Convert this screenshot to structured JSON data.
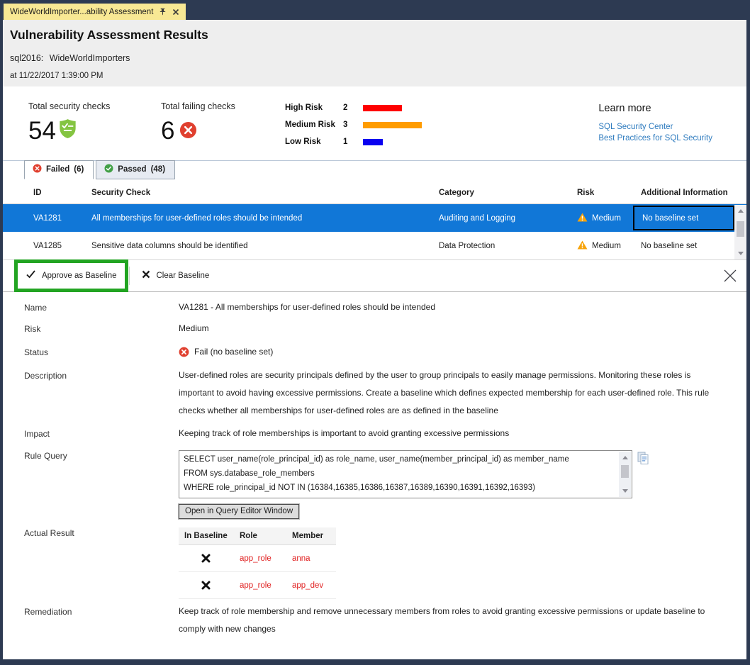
{
  "window": {
    "tab_title": "WideWorldImporter...ability Assessment"
  },
  "header": {
    "title": "Vulnerability Assessment Results",
    "server": "sql2016:",
    "database": "WideWorldImporters",
    "timestamp": "at 11/22/2017 1:39:00 PM"
  },
  "summary": {
    "total_checks": {
      "label": "Total security checks",
      "value": "54"
    },
    "failing_checks": {
      "label": "Total failing checks",
      "value": "6"
    },
    "risk_legend": [
      {
        "label": "High Risk",
        "value": 2,
        "color": "#fe0000"
      },
      {
        "label": "Medium Risk",
        "value": 3,
        "color": "#ff9c00"
      },
      {
        "label": "Low Risk",
        "value": 1,
        "color": "#0a00f0"
      }
    ],
    "learn_more": {
      "title": "Learn more",
      "links": [
        "SQL Security Center",
        "Best Practices for SQL Security"
      ]
    }
  },
  "result_tabs": {
    "failed": {
      "label": "Failed",
      "count": "(6)"
    },
    "passed": {
      "label": "Passed",
      "count": "(48)"
    }
  },
  "grid": {
    "columns": [
      "ID",
      "Security Check",
      "Category",
      "Risk",
      "Additional Information"
    ],
    "rows": [
      {
        "id": "VA1281",
        "check": "All memberships for user-defined roles should be intended",
        "category": "Auditing and Logging",
        "risk": "Medium",
        "info": "No baseline set"
      },
      {
        "id": "VA1285",
        "check": "Sensitive data columns should be identified",
        "category": "Data Protection",
        "risk": "Medium",
        "info": "No baseline set"
      }
    ]
  },
  "toolbar": {
    "approve_label": "Approve as Baseline",
    "clear_label": "Clear Baseline"
  },
  "details": {
    "name": {
      "label": "Name",
      "value": "VA1281 - All memberships for user-defined roles should be intended"
    },
    "risk": {
      "label": "Risk",
      "value": "Medium"
    },
    "status": {
      "label": "Status",
      "value": "Fail (no baseline set)"
    },
    "description": {
      "label": "Description",
      "value": "User-defined roles are security principals defined by the user to group principals to easily manage permissions. Monitoring these roles is important to avoid having excessive permissions. Create a baseline which defines expected membership for each user-defined role. This rule checks whether all memberships for user-defined roles are as defined in the baseline"
    },
    "impact": {
      "label": "Impact",
      "value": "Keeping track of role memberships is important to avoid granting excessive permissions"
    },
    "rule_query": {
      "label": "Rule Query",
      "lines": [
        "SELECT user_name(role_principal_id) as role_name, user_name(member_principal_id) as member_name",
        "FROM sys.database_role_members",
        "WHERE role_principal_id NOT IN (16384,16385,16386,16387,16389,16390,16391,16392,16393)"
      ],
      "button_label": "Open in Query Editor Window"
    },
    "actual_result": {
      "label": "Actual Result",
      "columns": [
        "In Baseline",
        "Role",
        "Member"
      ],
      "rows": [
        {
          "role": "app_role",
          "member": "anna"
        },
        {
          "role": "app_role",
          "member": "app_dev"
        }
      ]
    },
    "remediation": {
      "label": "Remediation",
      "value": "Keep track of role membership and remove unnecessary members from roles to avoid granting excessive permissions or update baseline to comply with new changes"
    }
  },
  "colors": {
    "titlebar_navy": "#2d3a52",
    "tab_yellow": "#f8e894",
    "selected_row_blue": "#1177d7",
    "annotation_green": "#22a422",
    "link_blue": "#2f7cbf",
    "fail_red": "#e0402f",
    "pass_green": "#43a047",
    "warning_orange": "#f7a30a",
    "result_red_text": "#e01f1f"
  },
  "icons": {
    "pin-icon": "pushpin",
    "tab-close-icon": "×",
    "shield-check-icon": "green shield with checklist",
    "fail-circle-icon": "red circle with white ×",
    "pass-circle-icon": "green circle with white ✓",
    "warning-triangle-icon": "orange triangle with !",
    "check-icon": "✓",
    "x-icon": "×",
    "close-icon": "×",
    "copy-icon": "overlapping document pages",
    "not-in-baseline-icon": "✖"
  }
}
